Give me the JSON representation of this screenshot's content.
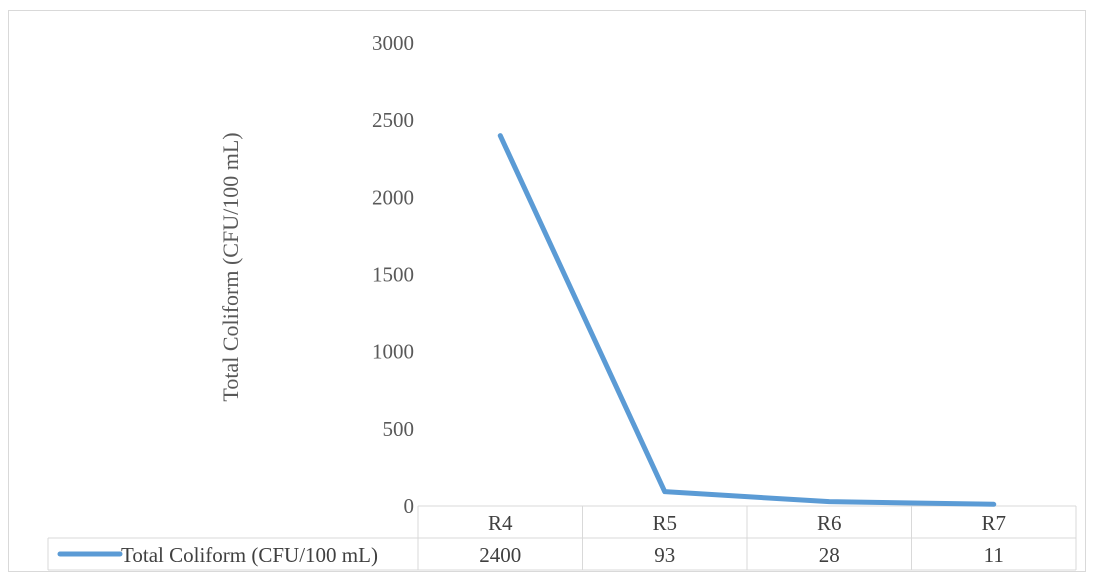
{
  "chart_data": {
    "type": "line",
    "title": "",
    "xlabel": "",
    "ylabel": "Total Coliform (CFU/100 mL)",
    "categories": [
      "R4",
      "R5",
      "R6",
      "R7"
    ],
    "series": [
      {
        "name": "Total Coliform (CFU/100 mL)",
        "values": [
          2400,
          93,
          28,
          11
        ],
        "value_labels": [
          "2400",
          "93",
          "28",
          "11"
        ],
        "color": "#5b9bd5"
      }
    ],
    "ylim": [
      0,
      3000
    ],
    "yticks": [
      0,
      500,
      1000,
      1500,
      2000,
      2500,
      3000
    ],
    "ytick_labels": [
      "0",
      "500",
      "1000",
      "1500",
      "2000",
      "2500",
      "3000"
    ],
    "grid": false,
    "legend": "data-table",
    "data_table": true
  }
}
